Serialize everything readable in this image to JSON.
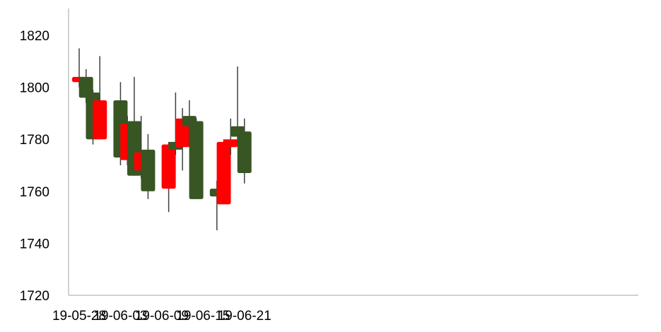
{
  "chart_data": {
    "type": "candlestick",
    "title": "",
    "xlabel": "",
    "ylabel": "",
    "ylim": [
      1720,
      1830
    ],
    "y_ticks": [
      1720,
      1740,
      1760,
      1780,
      1800,
      1820
    ],
    "x_start": "19-05-28",
    "x_ticks": [
      "19-05-28",
      "19-06-03",
      "19-06-09",
      "19-06-15",
      "19-06-21"
    ],
    "grid": false,
    "legend": "none",
    "up_color": "#ff0000",
    "down_color": "#375623",
    "wick_color": "#404040",
    "axis_color": "#a6a6a6",
    "text_color": "#000000",
    "candles": [
      {
        "date": "19-05-28",
        "open": 1802,
        "high": 1815,
        "low": 1800,
        "close": 1804
      },
      {
        "date": "19-05-29",
        "open": 1804,
        "high": 1807,
        "low": 1794,
        "close": 1796
      },
      {
        "date": "19-05-30",
        "open": 1798,
        "high": 1799,
        "low": 1778,
        "close": 1780
      },
      {
        "date": "19-05-31",
        "open": 1780,
        "high": 1812,
        "low": 1780,
        "close": 1795
      },
      {
        "date": "19-06-03",
        "open": 1795,
        "high": 1802,
        "low": 1770,
        "close": 1773
      },
      {
        "date": "19-06-04",
        "open": 1772,
        "high": 1789,
        "low": 1770,
        "close": 1786
      },
      {
        "date": "19-06-05",
        "open": 1787,
        "high": 1804,
        "low": 1766,
        "close": 1766
      },
      {
        "date": "19-06-06",
        "open": 1768,
        "high": 1789,
        "low": 1765,
        "close": 1775
      },
      {
        "date": "19-06-07",
        "open": 1776,
        "high": 1782,
        "low": 1757,
        "close": 1760
      },
      {
        "date": "19-06-10",
        "open": 1761,
        "high": 1779,
        "low": 1752,
        "close": 1778
      },
      {
        "date": "19-06-11",
        "open": 1779,
        "high": 1798,
        "low": 1774,
        "close": 1776
      },
      {
        "date": "19-06-12",
        "open": 1777,
        "high": 1792,
        "low": 1768,
        "close": 1788
      },
      {
        "date": "19-06-13",
        "open": 1789,
        "high": 1795,
        "low": 1777,
        "close": 1785
      },
      {
        "date": "19-06-14",
        "open": 1787,
        "high": 1788,
        "low": 1757,
        "close": 1757
      },
      {
        "date": "19-06-17",
        "open": 1761,
        "high": 1764,
        "low": 1745,
        "close": 1758
      },
      {
        "date": "19-06-18",
        "open": 1755,
        "high": 1780,
        "low": 1755,
        "close": 1779
      },
      {
        "date": "19-06-19",
        "open": 1777,
        "high": 1788,
        "low": 1774,
        "close": 1780
      },
      {
        "date": "19-06-20",
        "open": 1785,
        "high": 1808,
        "low": 1779,
        "close": 1781
      },
      {
        "date": "19-06-21",
        "open": 1783,
        "high": 1788,
        "low": 1763,
        "close": 1767
      }
    ]
  }
}
